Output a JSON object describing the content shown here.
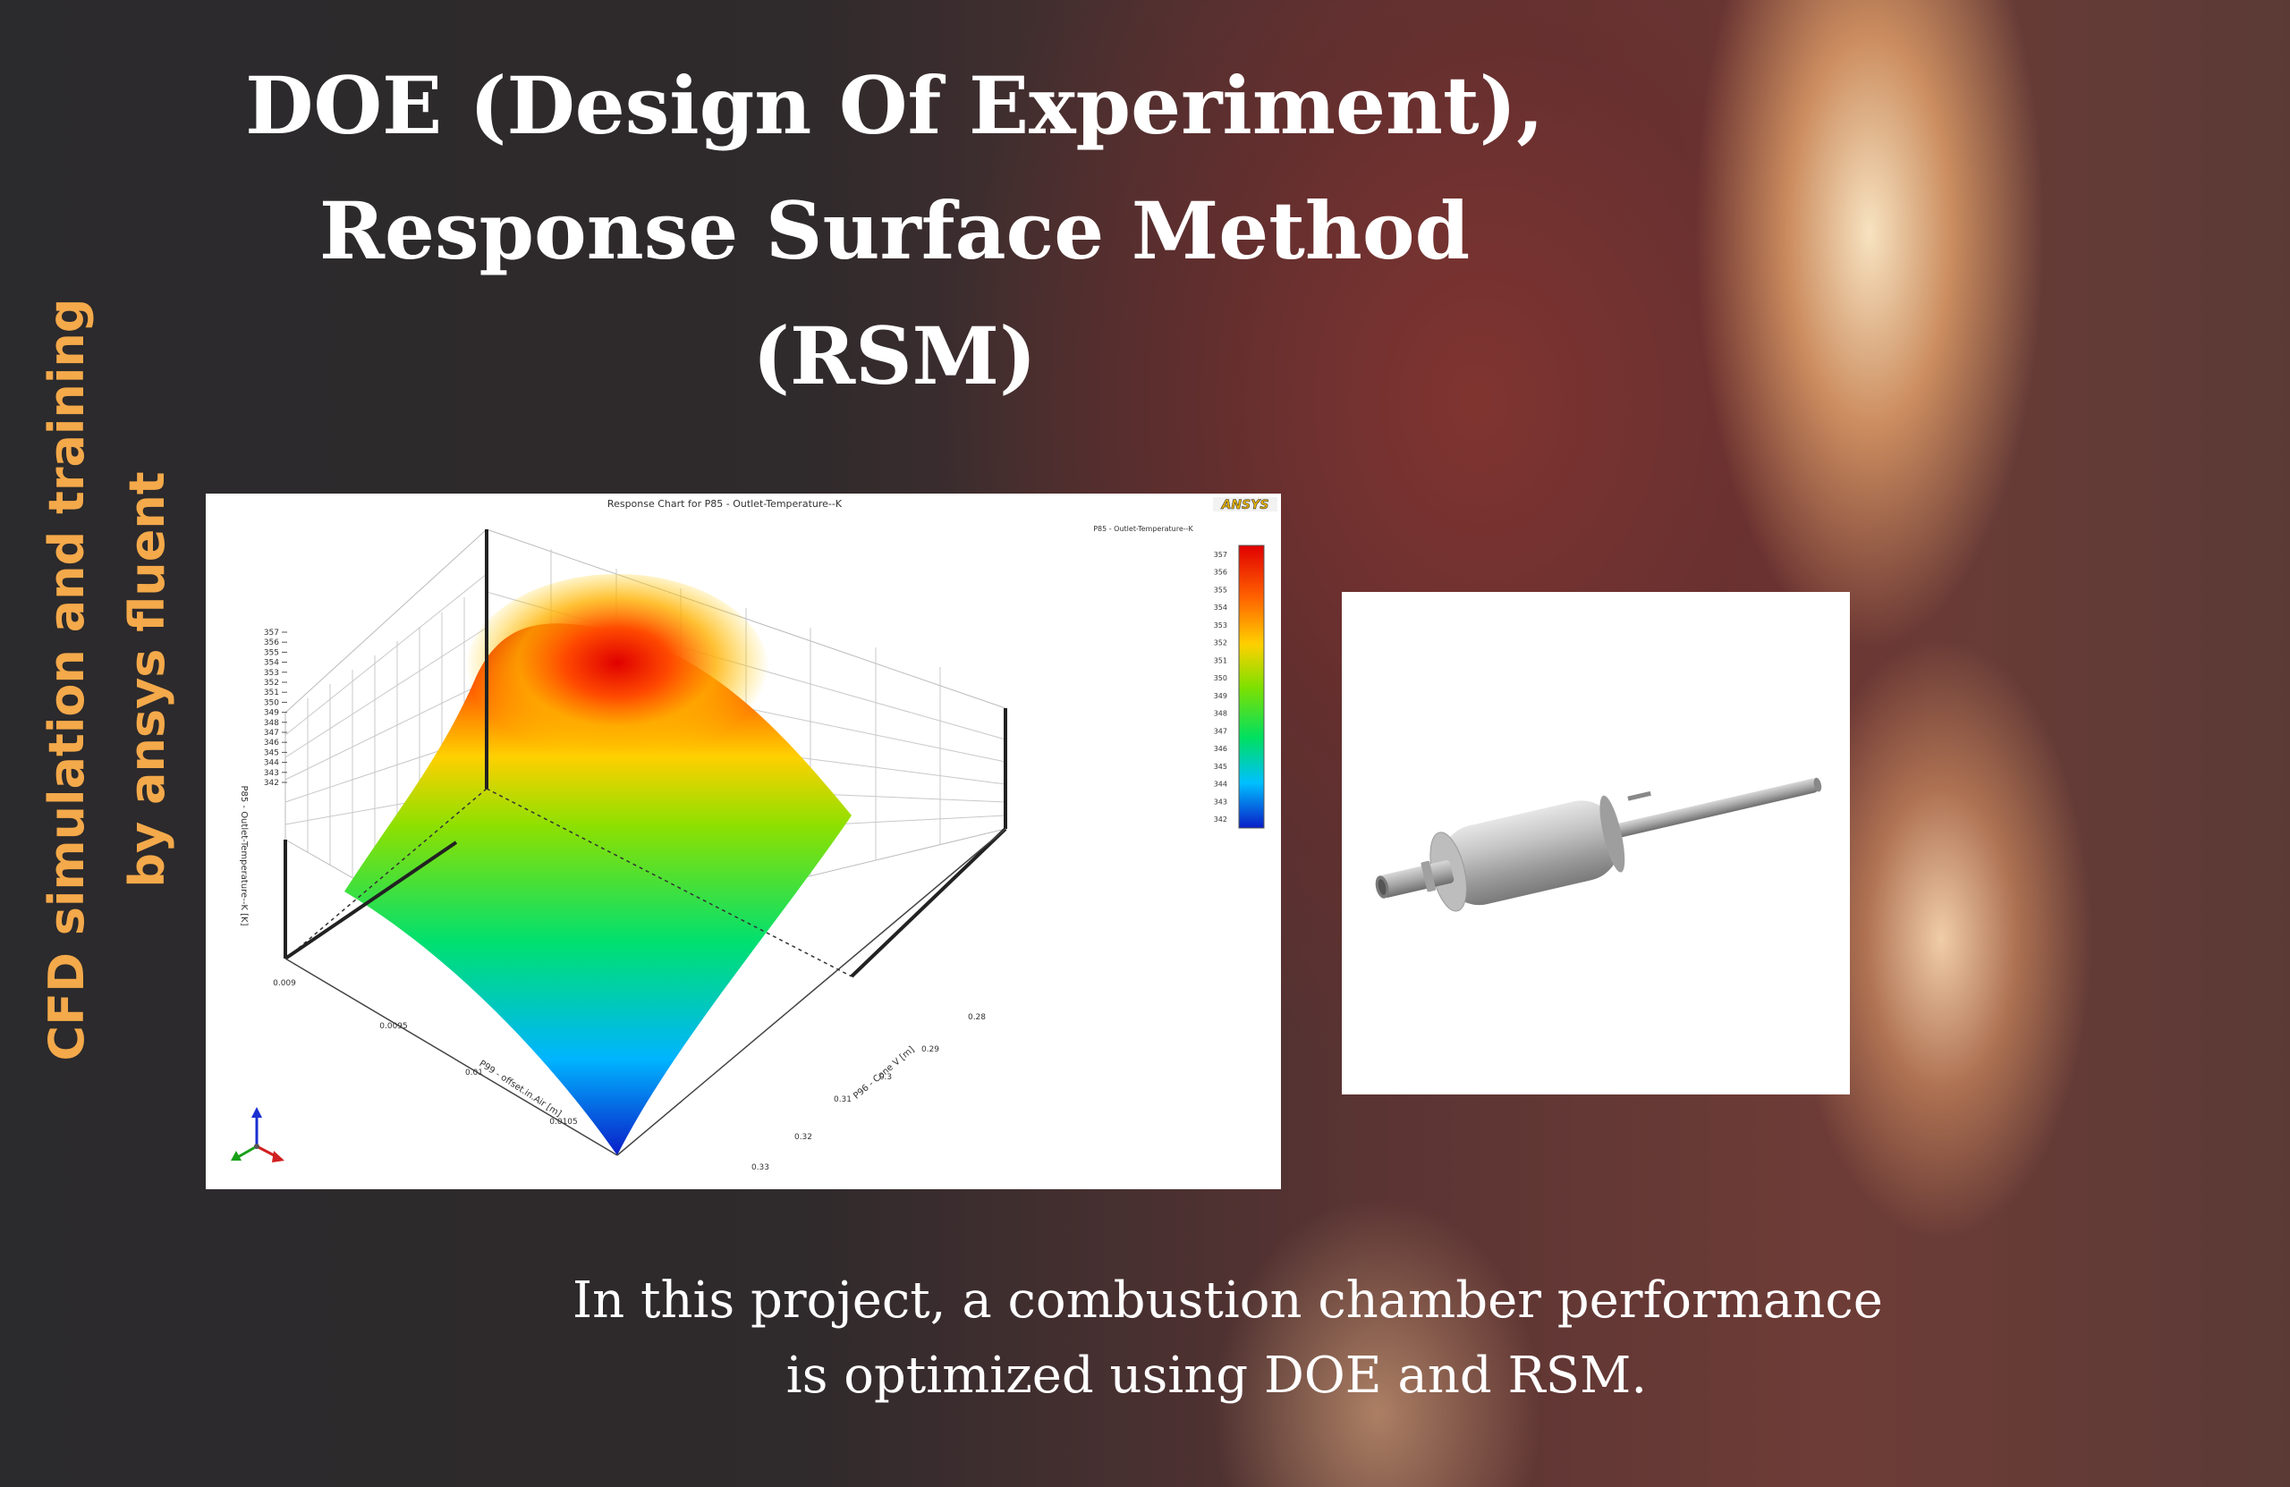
{
  "title": {
    "line1": "DOE (Design Of Experiment),",
    "line2": "Response Surface Method",
    "line3": "(RSM)"
  },
  "side": {
    "line1": "CFD simulation and training",
    "line2": "by ansys fluent"
  },
  "chart": {
    "title": "Response Chart for P85 - Outlet-Temperature--K",
    "logo": "ANSYS",
    "legend_title": "P85 - Outlet-Temperature--K",
    "legend_ticks": [
      "357",
      "356",
      "355",
      "354",
      "353",
      "352",
      "351",
      "350",
      "349",
      "348",
      "347",
      "346",
      "345",
      "344",
      "343",
      "342"
    ],
    "z_label": "P85 - Outlet-Temperature--K [K]",
    "z_ticks": [
      "357",
      "356",
      "355",
      "354",
      "353",
      "352",
      "351",
      "350",
      "349",
      "348",
      "347",
      "346",
      "345",
      "344",
      "343",
      "342"
    ],
    "left_axis_label": "P99 - offset.in.Air [m]",
    "left_axis_ticks": [
      "0.009",
      "0.0095",
      "0.01",
      "0.0105"
    ],
    "right_axis_label": "P96 - Cone V [m]",
    "right_axis_ticks": [
      "0.28",
      "0.29",
      "0.3",
      "0.31",
      "0.32",
      "0.33"
    ],
    "colors": [
      "#0a1ec8",
      "#00b4ff",
      "#00e070",
      "#8ee000",
      "#ffd000",
      "#ff5a00",
      "#e00000"
    ]
  },
  "image": {
    "name": "muffler-photo"
  },
  "caption": {
    "line1": "In this project, a combustion chamber performance",
    "line2": "is optimized using DOE and RSM."
  }
}
